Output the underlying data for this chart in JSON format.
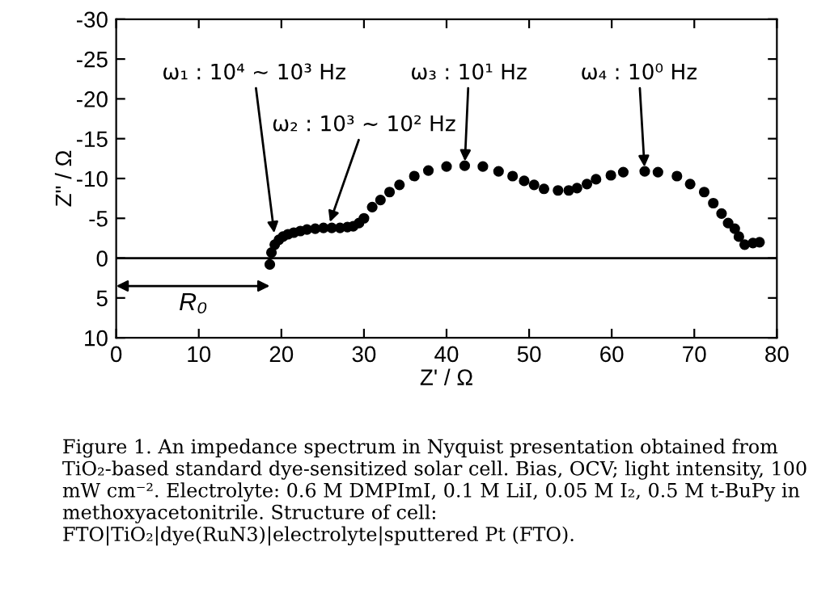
{
  "chart_data": {
    "type": "scatter",
    "xlabel": "Z' / Ω",
    "ylabel": "Z\" / Ω",
    "xlim": [
      0,
      80
    ],
    "ylim": [
      10,
      -30
    ],
    "xticks": [
      0,
      10,
      20,
      30,
      40,
      50,
      60,
      70,
      80
    ],
    "yticks": [
      -30,
      -25,
      -20,
      -15,
      -10,
      -5,
      0,
      5,
      10
    ],
    "marker": "circle",
    "series": [
      {
        "color": "#000000",
        "x": [
          18.6,
          18.8,
          19.2,
          19.7,
          20.2,
          20.8,
          21.5,
          22.3,
          23.1,
          24.1,
          25.1,
          26.1,
          27.1,
          28.0,
          28.7,
          29.4,
          30.0,
          31.0,
          32.0,
          33.1,
          34.3,
          36.1,
          37.8,
          40.0,
          42.2,
          44.4,
          46.3,
          48.0,
          49.4,
          50.6,
          51.8,
          53.5,
          54.8,
          55.8,
          57.0,
          58.1,
          59.9,
          61.4,
          64.0,
          65.6,
          67.9,
          69.5,
          71.2,
          72.3,
          73.3,
          74.1,
          74.9,
          75.4,
          76.1,
          77.1,
          77.9
        ],
        "values": [
          0.8,
          -0.7,
          -1.7,
          -2.3,
          -2.7,
          -3.0,
          -3.2,
          -3.4,
          -3.6,
          -3.7,
          -3.8,
          -3.8,
          -3.8,
          -3.9,
          -4.0,
          -4.4,
          -5.0,
          -6.4,
          -7.3,
          -8.3,
          -9.2,
          -10.3,
          -11.0,
          -11.5,
          -11.6,
          -11.5,
          -10.9,
          -10.3,
          -9.7,
          -9.2,
          -8.7,
          -8.5,
          -8.5,
          -8.8,
          -9.3,
          -9.9,
          -10.4,
          -10.8,
          -10.9,
          -10.8,
          -10.3,
          -9.3,
          -8.3,
          -6.9,
          -5.6,
          -4.4,
          -3.7,
          -2.7,
          -1.7,
          -1.9,
          -2.0
        ]
      }
    ],
    "ref_lines": [
      {
        "axis": "y",
        "value": 0,
        "color": "#000000"
      }
    ],
    "annotations": [
      {
        "text": "ω₁ : 10⁴ ~ 10³ Hz",
        "x": 19.2,
        "y": -2.6
      },
      {
        "text": "ω₂ : 10³ ~ 10² Hz",
        "x": 25.7,
        "y": -4.0
      },
      {
        "text": "ω₃ : 10¹ Hz",
        "x": 42.2,
        "y": -11.6
      },
      {
        "text": "ω₄ : 10⁰ Hz",
        "x": 64.0,
        "y": -10.9
      },
      "R₀",
      "Figure 1. An impedance spectrum in Nyquist presentation obtained from TiO₂-based standard dye-sensitized solar cell. Bias, OCV; light intensity, 100 mW cm⁻². Electrolyte: 0.6 M DMPImI, 0.1 M LiI, 0.05 M I₂, 0.5 M t-BuPy in methoxyacetonitrile. Structure of cell: FTO|TiO₂|dye(RuN3)|electrolyte|sputtered Pt (FTO)."
    ]
  }
}
